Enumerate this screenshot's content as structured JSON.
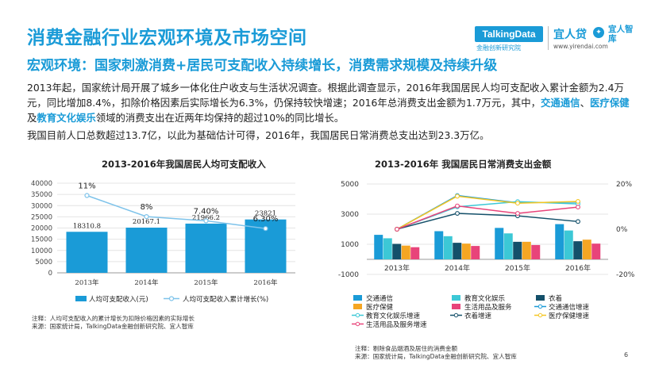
{
  "header": {
    "title": "消费金融行业宏观环境及市场空间",
    "subtitle": "宏观环境：国家刺激消费+居民可支配收入持续增长，消费需求规模及持续升级"
  },
  "logos": {
    "talkingdata": "TalkingData",
    "talkingdata_sub": "金融创新研究院",
    "yirendai": "宜人贷",
    "yirendai_url": "www.yirendai.com",
    "zhiku": "宜人智库"
  },
  "body": {
    "p1_a": "2013年起，国家统计局开展了城乡一体化住户收支与生活状况调查。根据此调查显示，2016年我国居民人均可支配收入累计金额为2.4万元，同比增加8.4%，扣除价格因素后实际增长为6.3%，仍保持较快增速；2016年总消费支出金额为1.7万元，其中，",
    "hl1": "交通通信",
    "sep1": "、",
    "hl2": "医疗保健",
    "and": "及",
    "hl3": "教育文化娱乐",
    "p1_b": "领域的消费支出在近两年均保持的超过10%的同比增长。",
    "p2": "我国目前人口总数超过13.7亿，以此为基础估计可得，2016年，我国居民日常消费总支出达到23.3万亿。"
  },
  "notes": {
    "left_1": "注释：人均可支配收入的累计增长为扣除价格因素的实际增长",
    "left_2": "来源：国家统计局，TalkingData金融创新研究院、宜人智库",
    "right_1": "注释：剔除食品烟酒及居住的消费金额",
    "right_2": "来源：国家统计局，TalkingData金融创新研究院、宜人智库"
  },
  "page_number": "6",
  "chart_data": [
    {
      "type": "bar",
      "title": "2013-2016年我国居民人均可支配收入",
      "categories": [
        "2013年",
        "2014年",
        "2015年",
        "2016年"
      ],
      "ylim": [
        0,
        40000
      ],
      "yticks": [
        "0",
        "5000",
        "10000",
        "15000",
        "20000",
        "25000",
        "30000",
        "35000",
        "40000"
      ],
      "series": [
        {
          "name": "人均可支配收入(元)",
          "kind": "bar",
          "color": "#1a9bd7",
          "values": [
            18310.8,
            20167.1,
            21966.2,
            23821
          ],
          "labels": [
            "18310.8",
            "20167.1",
            "21966.2",
            "23821"
          ]
        },
        {
          "name": "人均可支配收入累计增长(%)",
          "kind": "line",
          "color": "#7ec3ea",
          "values": [
            11,
            8,
            7.4,
            6.3
          ],
          "labels": [
            "11%",
            "8%",
            "7.40%",
            "6.30%"
          ],
          "ylim": [
            0,
            12.75
          ]
        }
      ],
      "grid": true,
      "legend": "bottom"
    },
    {
      "type": "bar",
      "title": "2013-2016年  我国居民日常消费支出金额",
      "categories": [
        "2013年",
        "2014年",
        "2015年",
        "2016年"
      ],
      "ylim": [
        -1000,
        5000
      ],
      "yticks_left": [
        "-1000",
        "1000",
        "3000",
        "5000"
      ],
      "ylim_right": [
        -20,
        20
      ],
      "yticks_right": [
        "-20%",
        "0%",
        "20%"
      ],
      "bar_series": [
        {
          "name": "交通通信",
          "color": "#1a9bd7",
          "values": [
            1627,
            1869,
            2087,
            2338
          ]
        },
        {
          "name": "教育文化娱乐",
          "color": "#3cc8d6",
          "values": [
            1398,
            1536,
            1723,
            1915
          ]
        },
        {
          "name": "衣着",
          "color": "#14506a",
          "values": [
            1027,
            1099,
            1164,
            1203
          ]
        },
        {
          "name": "医疗保健",
          "color": "#f5a623",
          "values": [
            912,
            1045,
            1165,
            1307
          ]
        },
        {
          "name": "生活用品及服务",
          "color": "#e8447a",
          "values": [
            806,
            889,
            951,
            1044
          ]
        }
      ],
      "line_series": [
        {
          "name": "交通通信增速",
          "color": "#1a9bd7",
          "values": [
            0,
            14.9,
            11.7,
            12.0
          ]
        },
        {
          "name": "教育文化娱乐增速",
          "color": "#3cc8d6",
          "values": [
            0,
            9.9,
            12.2,
            11.2
          ]
        },
        {
          "name": "衣着增速",
          "color": "#14506a",
          "values": [
            0,
            7.0,
            5.9,
            3.4
          ]
        },
        {
          "name": "医疗保健增速",
          "color": "#f5c623",
          "values": [
            0,
            14.6,
            11.5,
            12.3
          ]
        },
        {
          "name": "生活用品及服务增速",
          "color": "#e8447a",
          "values": [
            0,
            10.3,
            7.0,
            9.8
          ]
        }
      ],
      "grid": true,
      "legend": "bottom"
    }
  ]
}
